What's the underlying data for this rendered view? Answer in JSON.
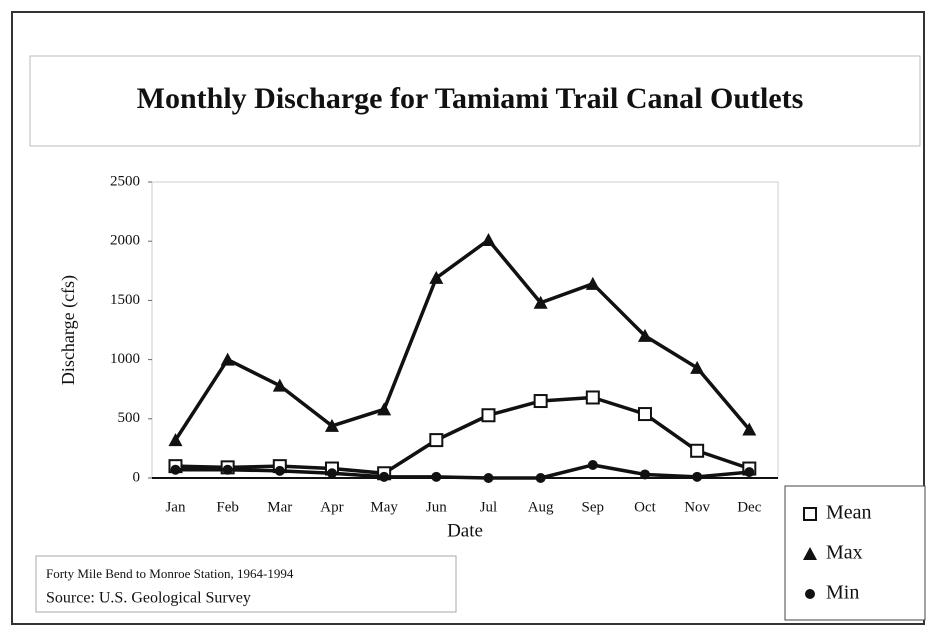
{
  "chart_data": {
    "type": "line",
    "title": "Monthly Discharge for Tamiami Trail Canal Outlets",
    "ylabel": "Discharge (cfs)",
    "xlabel": "Date",
    "categories": [
      "Jan",
      "Feb",
      "Mar",
      "Apr",
      "May",
      "Jun",
      "Jul",
      "Aug",
      "Sep",
      "Oct",
      "Nov",
      "Dec"
    ],
    "series": [
      {
        "name": "Mean",
        "color": "#111111",
        "marker": "square",
        "values": [
          100,
          90,
          100,
          80,
          40,
          320,
          530,
          650,
          680,
          540,
          230,
          80
        ]
      },
      {
        "name": "Max",
        "color": "#111111",
        "marker": "triangle",
        "values": [
          320,
          1000,
          780,
          440,
          580,
          1690,
          2010,
          1480,
          1640,
          1200,
          930,
          410
        ]
      },
      {
        "name": "Min",
        "color": "#111111",
        "marker": "circle",
        "values": [
          70,
          70,
          60,
          40,
          10,
          10,
          0,
          0,
          110,
          30,
          10,
          50
        ]
      }
    ],
    "ylim": [
      0,
      2500
    ],
    "yticks": [
      0,
      500,
      1000,
      1500,
      2000,
      2500
    ],
    "notes": [
      "Forty Mile Bend to Monroe Station,  1964-1994",
      "Source:  U.S. Geological Survey"
    ]
  }
}
